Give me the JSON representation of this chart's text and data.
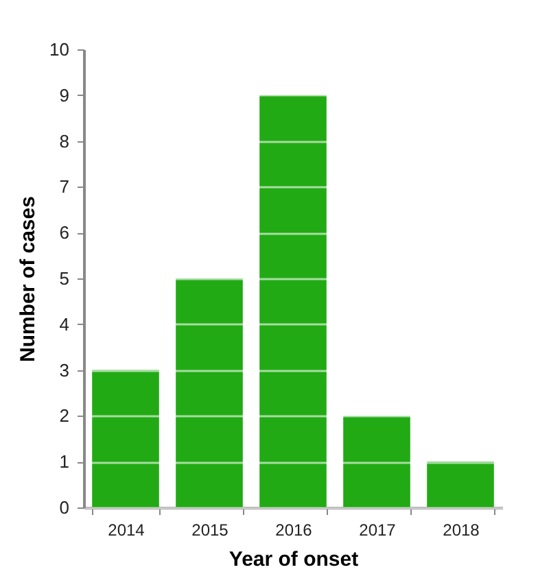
{
  "chart_data": {
    "type": "bar",
    "xlabel": "Year of onset",
    "ylabel": "Number of cases",
    "categories": [
      "2014",
      "2015",
      "2016",
      "2017",
      "2018"
    ],
    "values": [
      3,
      5,
      9,
      2,
      1
    ],
    "color": "#22aa15",
    "ylim": [
      0,
      10
    ],
    "yticks": [
      0,
      1,
      2,
      3,
      4,
      5,
      6,
      7,
      8,
      9,
      10
    ],
    "grid": "y"
  }
}
